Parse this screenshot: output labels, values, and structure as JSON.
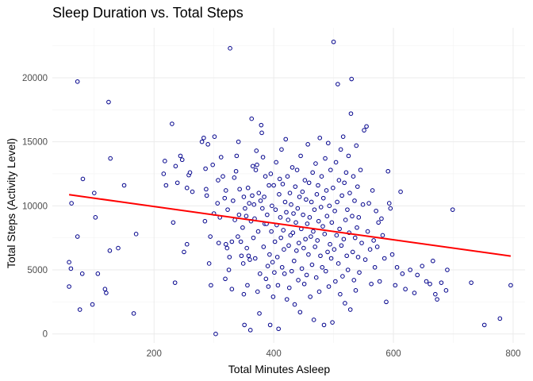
{
  "chart_data": {
    "type": "scatter",
    "title": "Sleep Duration vs. Total Steps",
    "xlabel": "Total Minutes Asleep",
    "ylabel": "Total Steps (Activity Level)",
    "xlim": [
      30,
      820
    ],
    "ylim": [
      -700,
      23900
    ],
    "xticks": [
      200,
      400,
      600,
      800
    ],
    "xtick_labels": [
      "200",
      "400",
      "600",
      "800"
    ],
    "yticks": [
      0,
      5000,
      10000,
      15000,
      20000
    ],
    "ytick_labels": [
      "0",
      "5000",
      "10000",
      "15000",
      "20000"
    ],
    "grid": true,
    "point_color": "#00008b",
    "trend_color": "#ff0000",
    "trend_line": {
      "x": [
        58,
        796
      ],
      "y": [
        10870,
        6080
      ]
    },
    "points": [
      [
        58,
        5600
      ],
      [
        58,
        3700
      ],
      [
        61,
        5100
      ],
      [
        62,
        10200
      ],
      [
        72,
        19700
      ],
      [
        72,
        7600
      ],
      [
        76,
        1900
      ],
      [
        81,
        12100
      ],
      [
        80,
        4700
      ],
      [
        97,
        2300
      ],
      [
        100,
        11000
      ],
      [
        102,
        9100
      ],
      [
        106,
        4700
      ],
      [
        118,
        3500
      ],
      [
        120,
        3200
      ],
      [
        124,
        18100
      ],
      [
        126,
        6500
      ],
      [
        127,
        13700
      ],
      [
        140,
        6700
      ],
      [
        150,
        11600
      ],
      [
        166,
        1600
      ],
      [
        170,
        7800
      ],
      [
        216,
        12500
      ],
      [
        218,
        13500
      ],
      [
        220,
        11600
      ],
      [
        230,
        16400
      ],
      [
        232,
        8700
      ],
      [
        235,
        4000
      ],
      [
        236,
        13100
      ],
      [
        239,
        11800
      ],
      [
        244,
        13900
      ],
      [
        247,
        13600
      ],
      [
        250,
        6400
      ],
      [
        255,
        7000
      ],
      [
        255,
        11400
      ],
      [
        258,
        12400
      ],
      [
        260,
        12600
      ],
      [
        264,
        11100
      ],
      [
        280,
        15000
      ],
      [
        283,
        15300
      ],
      [
        285,
        8800
      ],
      [
        286,
        12900
      ],
      [
        287,
        11300
      ],
      [
        288,
        10800
      ],
      [
        290,
        14800
      ],
      [
        292,
        5500
      ],
      [
        294,
        7600
      ],
      [
        295,
        3800
      ],
      [
        298,
        13200
      ],
      [
        300,
        9400
      ],
      [
        301,
        15400
      ],
      [
        303,
        0
      ],
      [
        306,
        10200
      ],
      [
        307,
        12000
      ],
      [
        308,
        7100
      ],
      [
        310,
        9100
      ],
      [
        312,
        13800
      ],
      [
        315,
        12300
      ],
      [
        318,
        10600
      ],
      [
        319,
        4300
      ],
      [
        320,
        7000
      ],
      [
        320,
        11200
      ],
      [
        322,
        6700
      ],
      [
        323,
        9700
      ],
      [
        325,
        5000
      ],
      [
        326,
        6000
      ],
      [
        327,
        22300
      ],
      [
        330,
        7200
      ],
      [
        330,
        3500
      ],
      [
        332,
        10400
      ],
      [
        334,
        12200
      ],
      [
        335,
        8900
      ],
      [
        337,
        12700
      ],
      [
        338,
        13900
      ],
      [
        340,
        7600
      ],
      [
        341,
        15000
      ],
      [
        342,
        9300
      ],
      [
        343,
        11300
      ],
      [
        345,
        7200
      ],
      [
        346,
        6100
      ],
      [
        348,
        8300
      ],
      [
        349,
        5500
      ],
      [
        350,
        10700
      ],
      [
        350,
        3100
      ],
      [
        351,
        700
      ],
      [
        352,
        9800
      ],
      [
        354,
        9200
      ],
      [
        355,
        6700
      ],
      [
        356,
        3800
      ],
      [
        357,
        11400
      ],
      [
        358,
        6100
      ],
      [
        359,
        10200
      ],
      [
        360,
        5800
      ],
      [
        361,
        300
      ],
      [
        362,
        8800
      ],
      [
        363,
        16800
      ],
      [
        364,
        10800
      ],
      [
        365,
        13100
      ],
      [
        366,
        7500
      ],
      [
        367,
        10100
      ],
      [
        368,
        9000
      ],
      [
        369,
        5900
      ],
      [
        370,
        12800
      ],
      [
        371,
        14300
      ],
      [
        372,
        13200
      ],
      [
        373,
        3300
      ],
      [
        374,
        8000
      ],
      [
        375,
        11000
      ],
      [
        376,
        1600
      ],
      [
        377,
        4700
      ],
      [
        378,
        10400
      ],
      [
        379,
        16300
      ],
      [
        380,
        15700
      ],
      [
        381,
        9800
      ],
      [
        382,
        13800
      ],
      [
        383,
        6800
      ],
      [
        384,
        10700
      ],
      [
        385,
        8600
      ],
      [
        386,
        12300
      ],
      [
        387,
        4300
      ],
      [
        388,
        8600
      ],
      [
        389,
        9300
      ],
      [
        390,
        5300
      ],
      [
        391,
        3700
      ],
      [
        392,
        11600
      ],
      [
        393,
        6200
      ],
      [
        394,
        700
      ],
      [
        395,
        12500
      ],
      [
        396,
        8000
      ],
      [
        397,
        10000
      ],
      [
        398,
        5600
      ],
      [
        399,
        2900
      ],
      [
        400,
        11600
      ],
      [
        401,
        4800
      ],
      [
        402,
        7200
      ],
      [
        403,
        9700
      ],
      [
        404,
        13400
      ],
      [
        405,
        8500
      ],
      [
        406,
        6000
      ],
      [
        407,
        3800
      ],
      [
        408,
        400
      ],
      [
        409,
        10900
      ],
      [
        410,
        12100
      ],
      [
        411,
        9100
      ],
      [
        412,
        7500
      ],
      [
        413,
        14400
      ],
      [
        414,
        5200
      ],
      [
        415,
        11700
      ],
      [
        416,
        8100
      ],
      [
        417,
        6600
      ],
      [
        418,
        4700
      ],
      [
        419,
        10300
      ],
      [
        420,
        15200
      ],
      [
        421,
        9500
      ],
      [
        422,
        2700
      ],
      [
        423,
        12300
      ],
      [
        424,
        8900
      ],
      [
        425,
        6900
      ],
      [
        426,
        3600
      ],
      [
        427,
        11000
      ],
      [
        428,
        7700
      ],
      [
        429,
        10100
      ],
      [
        430,
        4900
      ],
      [
        431,
        13000
      ],
      [
        432,
        7900
      ],
      [
        433,
        9400
      ],
      [
        434,
        5700
      ],
      [
        435,
        2300
      ],
      [
        436,
        11500
      ],
      [
        437,
        8700
      ],
      [
        438,
        6500
      ],
      [
        439,
        12800
      ],
      [
        440,
        9800
      ],
      [
        441,
        4200
      ],
      [
        442,
        7100
      ],
      [
        443,
        10700
      ],
      [
        444,
        1700
      ],
      [
        445,
        13900
      ],
      [
        446,
        8200
      ],
      [
        447,
        5100
      ],
      [
        448,
        11100
      ],
      [
        449,
        9300
      ],
      [
        450,
        6700
      ],
      [
        451,
        3900
      ],
      [
        452,
        12000
      ],
      [
        453,
        7400
      ],
      [
        454,
        10500
      ],
      [
        455,
        4600
      ],
      [
        456,
        8600
      ],
      [
        457,
        14800
      ],
      [
        458,
        6200
      ],
      [
        459,
        11800
      ],
      [
        460,
        9100
      ],
      [
        461,
        2900
      ],
      [
        462,
        7600
      ],
      [
        463,
        10300
      ],
      [
        464,
        5400
      ],
      [
        465,
        12600
      ],
      [
        466,
        8000
      ],
      [
        467,
        1100
      ],
      [
        468,
        9700
      ],
      [
        469,
        6800
      ],
      [
        470,
        13300
      ],
      [
        471,
        4400
      ],
      [
        472,
        10900
      ],
      [
        473,
        7300
      ],
      [
        474,
        11600
      ],
      [
        475,
        8800
      ],
      [
        476,
        3300
      ],
      [
        477,
        15300
      ],
      [
        478,
        6100
      ],
      [
        479,
        9900
      ],
      [
        480,
        12300
      ],
      [
        481,
        5200
      ],
      [
        482,
        8400
      ],
      [
        483,
        10600
      ],
      [
        484,
        700
      ],
      [
        485,
        7800
      ],
      [
        486,
        13700
      ],
      [
        487,
        4900
      ],
      [
        488,
        11200
      ],
      [
        489,
        9200
      ],
      [
        490,
        6400
      ],
      [
        491,
        14900
      ],
      [
        492,
        3700
      ],
      [
        493,
        10000
      ],
      [
        494,
        7000
      ],
      [
        495,
        12800
      ],
      [
        496,
        5900
      ],
      [
        497,
        8700
      ],
      [
        498,
        900
      ],
      [
        499,
        11400
      ],
      [
        500,
        22800
      ],
      [
        501,
        6600
      ],
      [
        502,
        9600
      ],
      [
        503,
        4100
      ],
      [
        504,
        13400
      ],
      [
        505,
        7700
      ],
      [
        506,
        10300
      ],
      [
        507,
        19500
      ],
      [
        508,
        5500
      ],
      [
        509,
        12000
      ],
      [
        510,
        8200
      ],
      [
        511,
        3100
      ],
      [
        512,
        14400
      ],
      [
        513,
        6900
      ],
      [
        514,
        10800
      ],
      [
        515,
        4500
      ],
      [
        516,
        15400
      ],
      [
        517,
        7400
      ],
      [
        518,
        11800
      ],
      [
        519,
        2400
      ],
      [
        520,
        8900
      ],
      [
        521,
        12600
      ],
      [
        522,
        6100
      ],
      [
        523,
        9700
      ],
      [
        524,
        5000
      ],
      [
        525,
        13900
      ],
      [
        526,
        7900
      ],
      [
        527,
        11000
      ],
      [
        528,
        1900
      ],
      [
        529,
        17200
      ],
      [
        530,
        19900
      ],
      [
        531,
        9200
      ],
      [
        532,
        6400
      ],
      [
        533,
        12300
      ],
      [
        534,
        4200
      ],
      [
        535,
        10400
      ],
      [
        536,
        7500
      ],
      [
        537,
        3400
      ],
      [
        538,
        14700
      ],
      [
        539,
        8300
      ],
      [
        540,
        11500
      ],
      [
        541,
        6000
      ],
      [
        542,
        9100
      ],
      [
        543,
        4800
      ],
      [
        545,
        12800
      ],
      [
        547,
        7100
      ],
      [
        549,
        10100
      ],
      [
        551,
        15900
      ],
      [
        553,
        5800
      ],
      [
        555,
        16200
      ],
      [
        557,
        8000
      ],
      [
        559,
        10200
      ],
      [
        561,
        6600
      ],
      [
        563,
        3900
      ],
      [
        565,
        11200
      ],
      [
        567,
        7300
      ],
      [
        569,
        5200
      ],
      [
        571,
        9600
      ],
      [
        573,
        6800
      ],
      [
        575,
        8700
      ],
      [
        577,
        4100
      ],
      [
        580,
        9000
      ],
      [
        582,
        7700
      ],
      [
        585,
        5900
      ],
      [
        588,
        2500
      ],
      [
        591,
        12700
      ],
      [
        593,
        10200
      ],
      [
        595,
        9800
      ],
      [
        598,
        6200
      ],
      [
        603,
        3800
      ],
      [
        606,
        5200
      ],
      [
        612,
        11100
      ],
      [
        615,
        4700
      ],
      [
        620,
        3500
      ],
      [
        628,
        5000
      ],
      [
        635,
        3200
      ],
      [
        640,
        4600
      ],
      [
        648,
        5300
      ],
      [
        655,
        4100
      ],
      [
        661,
        3900
      ],
      [
        666,
        5700
      ],
      [
        670,
        3100
      ],
      [
        673,
        2700
      ],
      [
        680,
        4000
      ],
      [
        688,
        3400
      ],
      [
        690,
        5000
      ],
      [
        699,
        9700
      ],
      [
        730,
        4000
      ],
      [
        752,
        700
      ],
      [
        778,
        1200
      ],
      [
        796,
        3800
      ]
    ]
  }
}
